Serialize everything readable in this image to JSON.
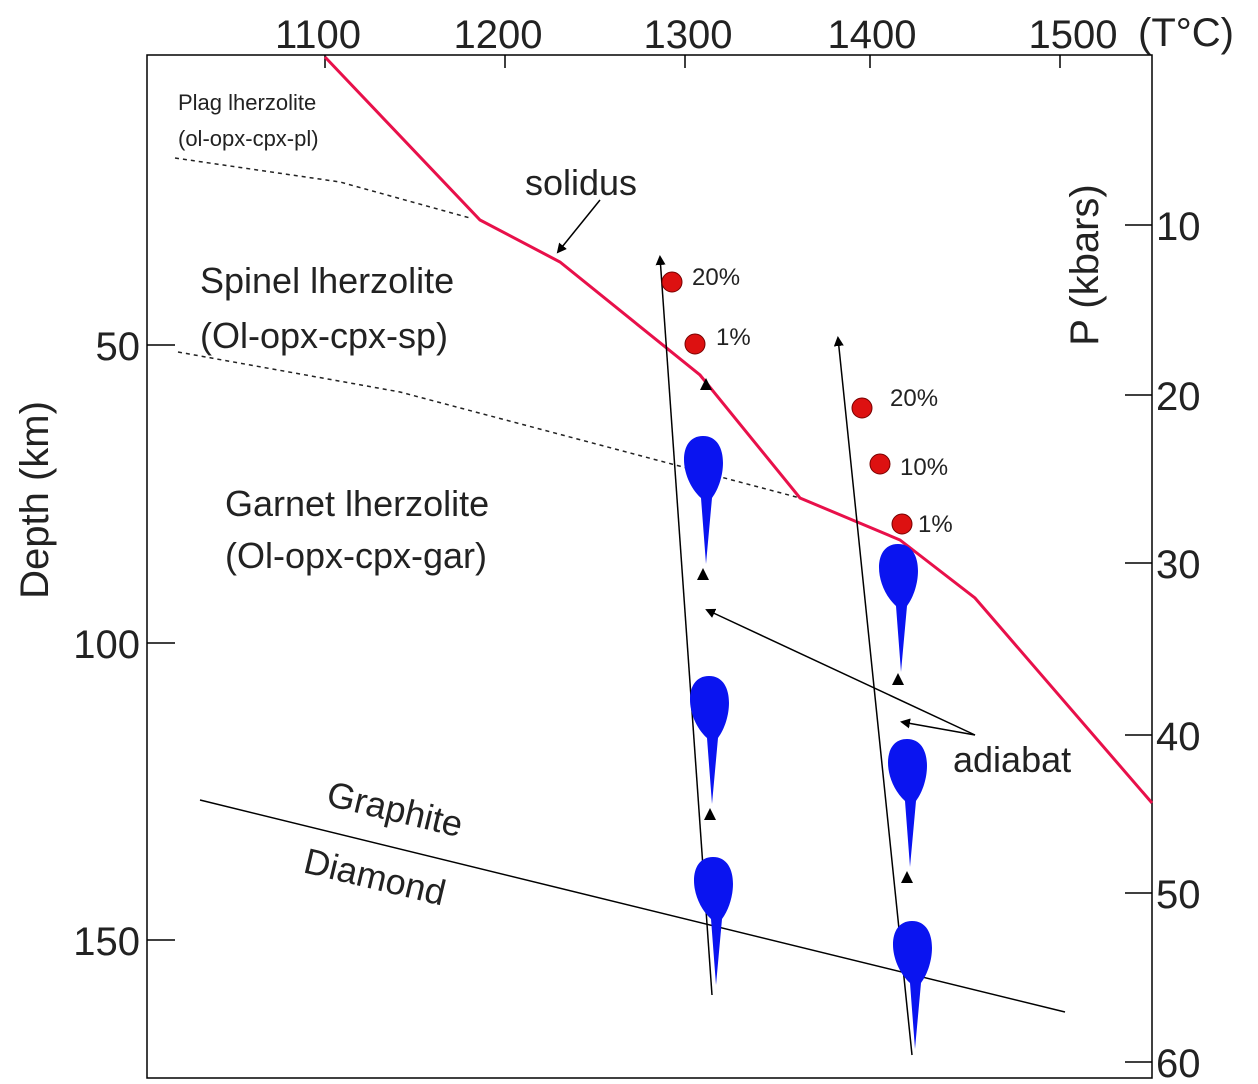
{
  "axes": {
    "top": {
      "ticks": [
        1100,
        1200,
        1300,
        1400,
        1500
      ],
      "unit": "(T°C)"
    },
    "left": {
      "title": "Depth (km)",
      "ticks": [
        50,
        100,
        150
      ]
    },
    "right": {
      "title": "P (kbars)",
      "ticks": [
        10,
        20,
        30,
        40,
        50,
        60
      ]
    }
  },
  "labels": {
    "plag": "Plag lherzolite",
    "plag_min": "(ol-opx-cpx-pl)",
    "solidus": "solidus",
    "spinel": "Spinel lherzolite",
    "spinel_min": "(Ol-opx-cpx-sp)",
    "garnet": "Garnet lherzolite",
    "garnet_min": "(Ol-opx-cpx-gar)",
    "graphite": "Graphite",
    "diamond": "Diamond",
    "adiabat": "adiabat"
  },
  "melt_paths": [
    {
      "labels": [
        "20%",
        "1%"
      ]
    },
    {
      "labels": [
        "20%",
        "10%",
        "1%"
      ]
    }
  ]
}
